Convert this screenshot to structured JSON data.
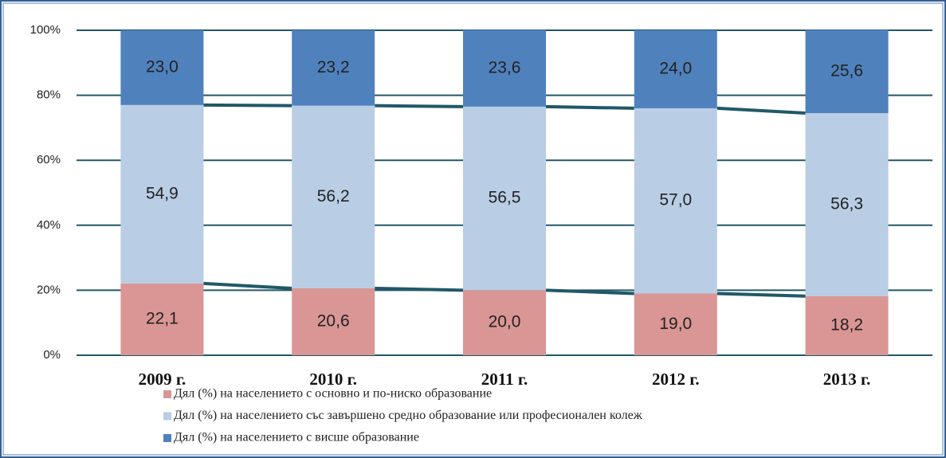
{
  "chart_data": {
    "type": "stacked_bar",
    "categories": [
      "2009 г.",
      "2010 г.",
      "2011 г.",
      "2012 г.",
      "2013 г."
    ],
    "series": [
      {
        "name": "Дял (%) на населението с основно и по-ниско образование",
        "color": "#d99694",
        "values": [
          22.1,
          20.6,
          20.0,
          19.0,
          18.2
        ],
        "value_labels": [
          "22,1",
          "20,6",
          "20,0",
          "19,0",
          "18,2"
        ]
      },
      {
        "name": "Дял  (%) на населението със завършено средно образование или професионален колеж",
        "color": "#b9cde5",
        "values": [
          54.9,
          56.2,
          56.5,
          57.0,
          56.3
        ],
        "value_labels": [
          "54,9",
          "56,2",
          "56,5",
          "57,0",
          "56,3"
        ]
      },
      {
        "name": "Дял  (%) на населението с висше образование",
        "color": "#4f81bd",
        "values": [
          23.0,
          23.2,
          23.6,
          24.0,
          25.6
        ],
        "value_labels": [
          "23,0",
          "23,2",
          "23,6",
          "24,0",
          "25,6"
        ]
      }
    ],
    "ylim": [
      0,
      100
    ],
    "yticks": [
      {
        "value": 0,
        "label": "0%"
      },
      {
        "value": 20,
        "label": "20%"
      },
      {
        "value": 40,
        "label": "40%"
      },
      {
        "value": 60,
        "label": "60%"
      },
      {
        "value": 80,
        "label": "80%"
      },
      {
        "value": 100,
        "label": "100%"
      }
    ],
    "grid": true,
    "grid_color": "#215868"
  }
}
